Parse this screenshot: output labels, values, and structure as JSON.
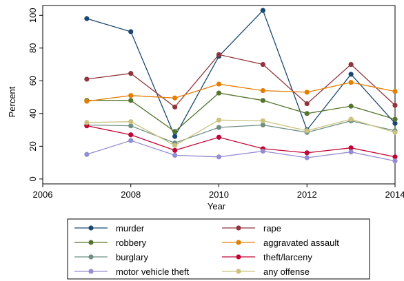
{
  "chart_data": {
    "type": "line",
    "title": "",
    "xlabel": "Year",
    "ylabel": "Percent",
    "xlim": [
      2006,
      2014
    ],
    "ylim": [
      -3,
      106
    ],
    "xticks": [
      2006,
      2008,
      2010,
      2012,
      2014
    ],
    "yticks": [
      0,
      20,
      40,
      60,
      80,
      100
    ],
    "grid": false,
    "legend_position": "bottom",
    "x": [
      2007,
      2008,
      2009,
      2010,
      2011,
      2012,
      2013,
      2014
    ],
    "series": [
      {
        "name": "murder",
        "color": "#1a476f",
        "values": [
          98,
          90,
          26,
          75,
          103,
          30,
          64,
          34
        ]
      },
      {
        "name": "rape",
        "color": "#90353b",
        "values": [
          61,
          64.5,
          44,
          76,
          70,
          46,
          70,
          45
        ]
      },
      {
        "name": "robbery",
        "color": "#55752f",
        "values": [
          48,
          48,
          29,
          52.5,
          48,
          40,
          44.5,
          36.5
        ]
      },
      {
        "name": "aggravated assault",
        "color": "#e37e00",
        "values": [
          47.5,
          51,
          49.5,
          58,
          54,
          53,
          59,
          53.5
        ]
      },
      {
        "name": "burglary",
        "color": "#6e8e84",
        "values": [
          33,
          32.5,
          22,
          31.5,
          33,
          28.5,
          35.5,
          29.5
        ]
      },
      {
        "name": "theft/larceny",
        "color": "#c10534",
        "values": [
          32.5,
          27,
          17.5,
          25.5,
          18.5,
          16,
          19,
          13.5
        ]
      },
      {
        "name": "motor vehicle theft",
        "color": "#938dd2",
        "values": [
          15,
          23.5,
          14.5,
          13.5,
          17,
          13,
          16.5,
          11
        ]
      },
      {
        "name": "any offense",
        "color": "#cac27e",
        "values": [
          34.5,
          35,
          20.5,
          36,
          35.5,
          29.5,
          36.5,
          28.5
        ]
      }
    ]
  }
}
